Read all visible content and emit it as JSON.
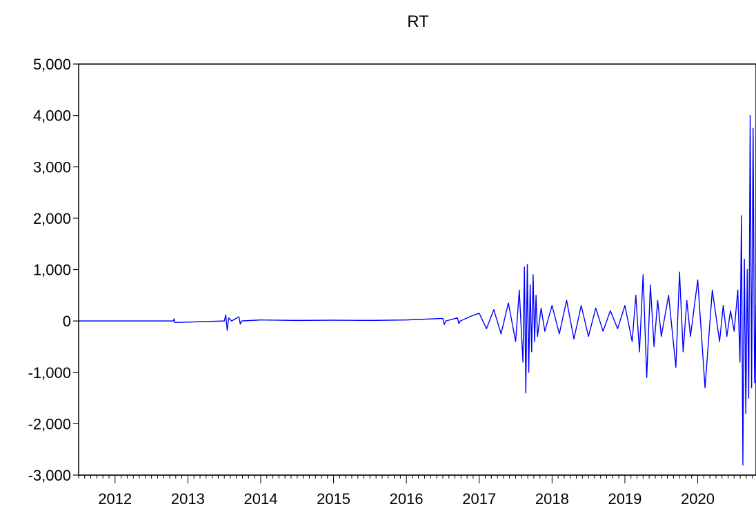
{
  "chart_data": {
    "type": "line",
    "title": "RT",
    "xlabel": "",
    "ylabel": "",
    "xlim": [
      2011.5,
      2020.8
    ],
    "ylim": [
      -3000,
      5000
    ],
    "y_ticks": [
      5000,
      4000,
      3000,
      2000,
      1000,
      0,
      -1000,
      -2000,
      -3000
    ],
    "y_tick_labels": [
      "5,000",
      "4,000",
      "3,000",
      "2,000",
      "1,000",
      "0",
      "-1,000",
      "-2,000",
      "-3,000"
    ],
    "x_tick_labels": [
      "2012",
      "2013",
      "2014",
      "2015",
      "2016",
      "2017",
      "2018",
      "2019",
      "2020"
    ],
    "x_ticks": [
      2012,
      2013,
      2014,
      2015,
      2016,
      2017,
      2018,
      2019,
      2020
    ],
    "grid": false,
    "legend": "none",
    "series": [
      {
        "color": "#0000ff",
        "x": [
          2011.5,
          2012.8,
          2012.81,
          2012.82,
          2013.5,
          2013.52,
          2013.54,
          2013.56,
          2013.6,
          2013.7,
          2013.72,
          2013.74,
          2014.0,
          2014.5,
          2015.0,
          2015.5,
          2016.0,
          2016.5,
          2016.52,
          2016.54,
          2016.7,
          2016.72,
          2016.74,
          2016.9,
          2017.0,
          2017.1,
          2017.2,
          2017.3,
          2017.4,
          2017.5,
          2017.55,
          2017.6,
          2017.62,
          2017.64,
          2017.66,
          2017.68,
          2017.7,
          2017.72,
          2017.74,
          2017.76,
          2017.78,
          2017.8,
          2017.85,
          2017.9,
          2018.0,
          2018.1,
          2018.2,
          2018.3,
          2018.4,
          2018.5,
          2018.6,
          2018.7,
          2018.8,
          2018.9,
          2019.0,
          2019.1,
          2019.15,
          2019.2,
          2019.25,
          2019.3,
          2019.35,
          2019.4,
          2019.45,
          2019.5,
          2019.6,
          2019.7,
          2019.75,
          2019.8,
          2019.85,
          2019.9,
          2020.0,
          2020.1,
          2020.2,
          2020.3,
          2020.35,
          2020.4,
          2020.45,
          2020.5,
          2020.55,
          2020.58,
          2020.6,
          2020.62,
          2020.64,
          2020.66,
          2020.68,
          2020.7,
          2020.72,
          2020.74,
          2020.76,
          2020.78,
          2020.8
        ],
        "y": [
          0,
          0,
          40,
          -30,
          0,
          120,
          -180,
          60,
          0,
          80,
          -60,
          0,
          20,
          10,
          15,
          10,
          20,
          50,
          -70,
          0,
          60,
          -50,
          0,
          100,
          150,
          -150,
          220,
          -250,
          350,
          -400,
          600,
          -800,
          1050,
          -1400,
          1100,
          -1000,
          700,
          -600,
          900,
          -400,
          500,
          -300,
          250,
          -200,
          300,
          -250,
          400,
          -350,
          300,
          -300,
          250,
          -200,
          200,
          -150,
          300,
          -400,
          500,
          -600,
          900,
          -1100,
          700,
          -500,
          400,
          -300,
          500,
          -900,
          950,
          -600,
          400,
          -300,
          800,
          -1300,
          600,
          -400,
          300,
          -300,
          200,
          -200,
          600,
          -800,
          2050,
          -2800,
          1200,
          -1800,
          1000,
          -1500,
          4000,
          -1300,
          3750,
          -1200,
          300
        ]
      }
    ]
  }
}
